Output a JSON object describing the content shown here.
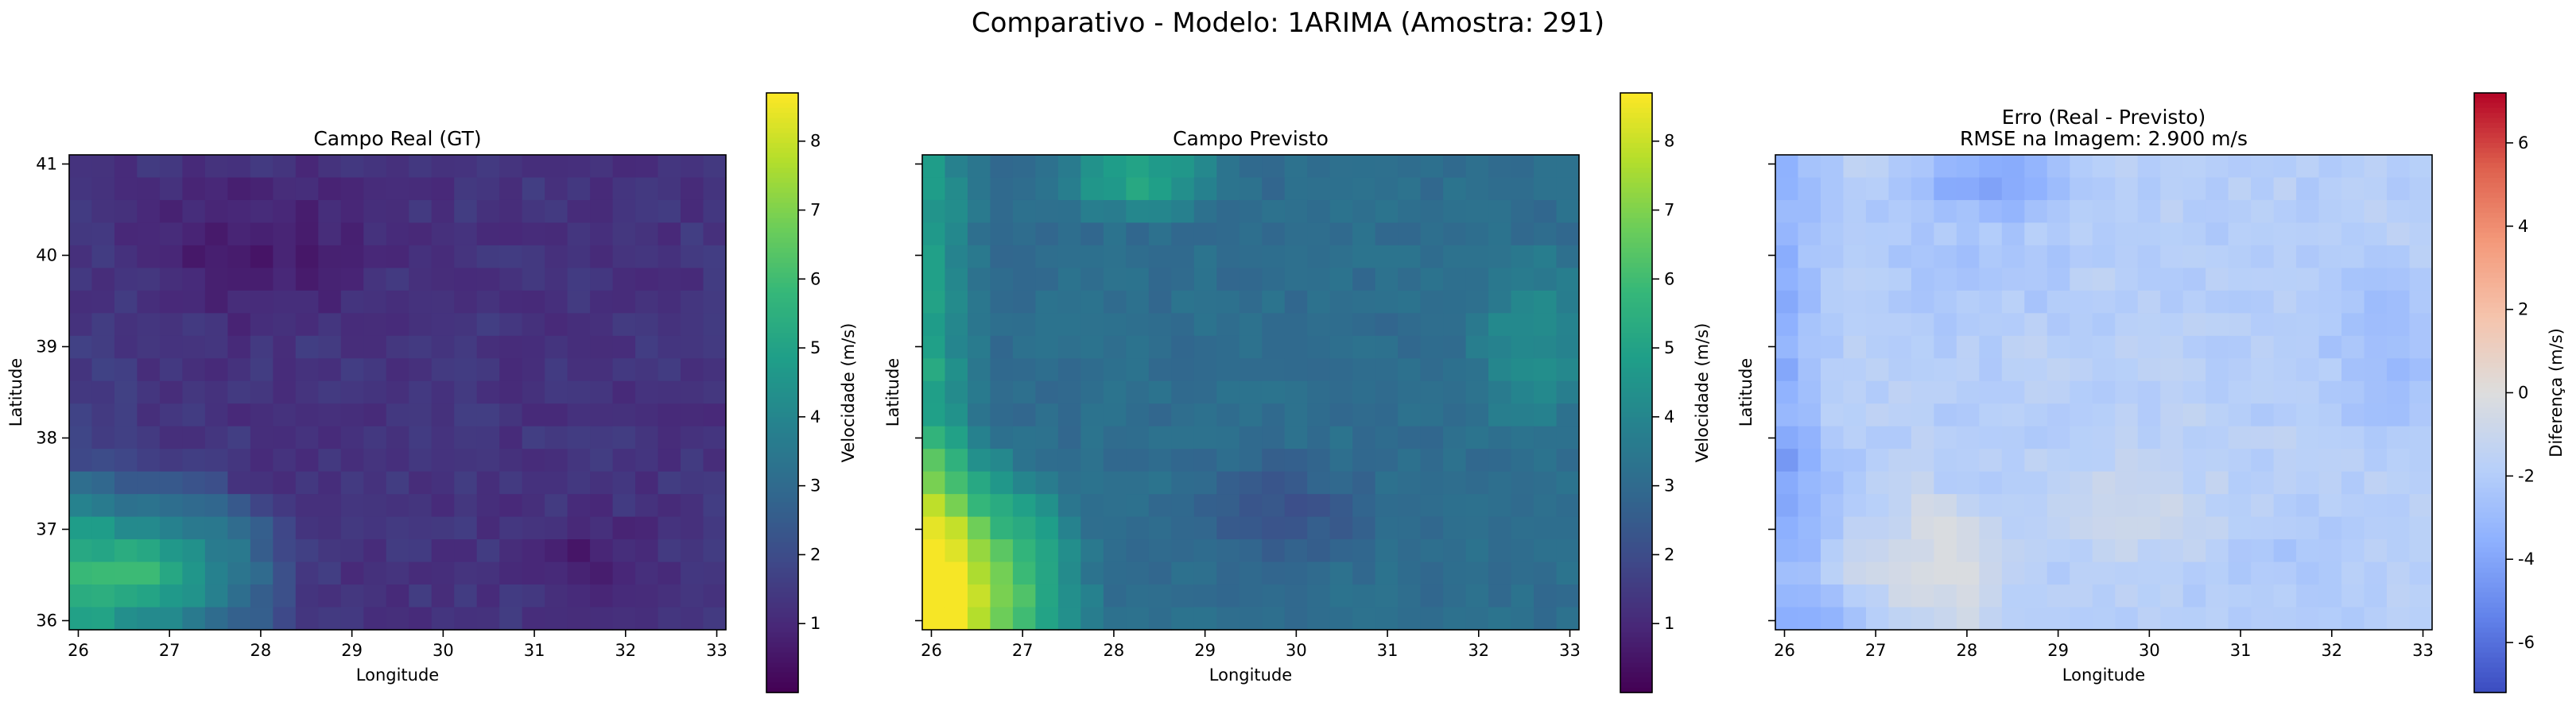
{
  "figure": {
    "suptitle": "Comparativo - Modelo: 1ARIMA (Amostra: 291)"
  },
  "chart_data": [
    {
      "type": "heatmap",
      "title": "Campo Real (GT)",
      "xlabel": "Longitude",
      "ylabel": "Latitude",
      "x_range": [
        25.9,
        33.1
      ],
      "y_range": [
        35.9,
        41.1
      ],
      "x_ticks": [
        26,
        27,
        28,
        29,
        30,
        31,
        32,
        33
      ],
      "y_ticks": [
        36,
        37,
        38,
        39,
        40,
        41
      ],
      "show_y_tick_labels": true,
      "colormap": "viridis",
      "grid_cols": 29,
      "grid_rows": 21,
      "colorbar": {
        "label": "Velocidade (m/s)",
        "range": [
          0.0,
          8.7
        ],
        "ticks": [
          1,
          2,
          3,
          4,
          5,
          6,
          7,
          8
        ]
      },
      "field_summary": {
        "min": 0.3,
        "max": 6.2,
        "hotspot": "southwest (26-28 E, 36-37.5 N)",
        "typical": 1.6
      }
    },
    {
      "type": "heatmap",
      "title": "Campo Previsto",
      "xlabel": "Longitude",
      "ylabel": "Latitude",
      "x_range": [
        25.9,
        33.1
      ],
      "y_range": [
        35.9,
        41.1
      ],
      "x_ticks": [
        26,
        27,
        28,
        29,
        30,
        31,
        32,
        33
      ],
      "y_ticks": [
        36,
        37,
        38,
        39,
        40,
        41
      ],
      "show_y_tick_labels": false,
      "colormap": "viridis",
      "grid_cols": 29,
      "grid_rows": 21,
      "colorbar": {
        "label": "Velocidade (m/s)",
        "range": [
          0.0,
          8.7
        ],
        "ticks": [
          1,
          2,
          3,
          4,
          5,
          6,
          7,
          8
        ]
      },
      "field_summary": {
        "min": 1.8,
        "max": 8.6,
        "hotspot": "southwest corner and west edge",
        "typical": 3.6
      }
    },
    {
      "type": "heatmap",
      "title": "Erro (Real - Previsto)",
      "subtitle": "RMSE na Imagem: 2.900 m/s",
      "xlabel": "Longitude",
      "ylabel": "Latitude",
      "x_range": [
        25.9,
        33.1
      ],
      "y_range": [
        35.9,
        41.1
      ],
      "x_ticks": [
        26,
        27,
        28,
        29,
        30,
        31,
        32,
        33
      ],
      "y_ticks": [
        36,
        37,
        38,
        39,
        40,
        41
      ],
      "show_y_tick_labels": false,
      "colormap": "coolwarm",
      "grid_cols": 29,
      "grid_rows": 21,
      "colorbar": {
        "label": "Diferença (m/s)",
        "range": [
          -7.2,
          7.2
        ],
        "ticks": [
          -6,
          -4,
          -2,
          0,
          2,
          4,
          6
        ]
      },
      "field_summary": {
        "min": -6.3,
        "max": -0.2,
        "mean": -2.5
      }
    }
  ]
}
